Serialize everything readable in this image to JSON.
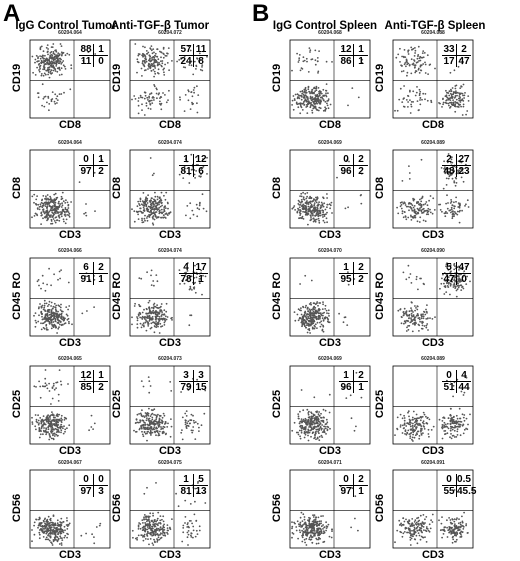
{
  "panels": [
    {
      "letter": "A",
      "columns": [
        {
          "title": "IgG Control Tumor",
          "plots": [
            {
              "id": "60204.064",
              "ylabel": "CD19",
              "xlabel": "CD8",
              "q": [
                "88",
                "1",
                "11",
                "0"
              ]
            },
            {
              "id": "60204.064",
              "ylabel": "CD8",
              "xlabel": "CD3",
              "q": [
                "0",
                "1",
                "97",
                "2"
              ]
            },
            {
              "id": "60204.066",
              "ylabel": "CD45 RO",
              "xlabel": "CD3",
              "q": [
                "6",
                "2",
                "91",
                "1"
              ]
            },
            {
              "id": "60204.065",
              "ylabel": "CD25",
              "xlabel": "CD3",
              "q": [
                "12",
                "1",
                "85",
                "2"
              ]
            },
            {
              "id": "60204.067",
              "ylabel": "CD56",
              "xlabel": "CD3",
              "q": [
                "0",
                "0",
                "97",
                "3"
              ]
            }
          ]
        },
        {
          "title": "Anti-TGF-β Tumor",
          "plots": [
            {
              "id": "60204.072",
              "ylabel": "CD19",
              "xlabel": "CD8",
              "q": [
                "57",
                "11",
                "24",
                "8"
              ]
            },
            {
              "id": "60204.074",
              "ylabel": "CD8",
              "xlabel": "CD3",
              "q": [
                "1",
                "12",
                "81",
                "6"
              ]
            },
            {
              "id": "60204.074",
              "ylabel": "CD45 RO",
              "xlabel": "CD3",
              "q": [
                "4",
                "17",
                "78",
                "1"
              ]
            },
            {
              "id": "60204.073",
              "ylabel": "CD25",
              "xlabel": "CD3",
              "q": [
                "3",
                "3",
                "79",
                "15"
              ]
            },
            {
              "id": "60204.075",
              "ylabel": "CD56",
              "xlabel": "CD3",
              "q": [
                "1",
                "5",
                "81",
                "13"
              ]
            }
          ]
        }
      ]
    },
    {
      "letter": "B",
      "columns": [
        {
          "title": "IgG Control Spleen",
          "plots": [
            {
              "id": "60204.068",
              "ylabel": "CD19",
              "xlabel": "CD8",
              "q": [
                "12",
                "1",
                "86",
                "1"
              ]
            },
            {
              "id": "60204.069",
              "ylabel": "CD8",
              "xlabel": "CD3",
              "q": [
                "0",
                "2",
                "96",
                "2"
              ]
            },
            {
              "id": "60204.070",
              "ylabel": "CD45 RO",
              "xlabel": "CD3",
              "q": [
                "1",
                "2",
                "95",
                "2"
              ]
            },
            {
              "id": "60204.069",
              "ylabel": "CD25",
              "xlabel": "CD3",
              "q": [
                "1",
                "2",
                "96",
                "1"
              ]
            },
            {
              "id": "60204.071",
              "ylabel": "CD56",
              "xlabel": "CD3",
              "q": [
                "0",
                "2",
                "97",
                "1"
              ]
            }
          ]
        },
        {
          "title": "Anti-TGF-β Spleen",
          "plots": [
            {
              "id": "60204.088",
              "ylabel": "CD19",
              "xlabel": "CD8",
              "q": [
                "33",
                "2",
                "17",
                "47"
              ]
            },
            {
              "id": "60204.089",
              "ylabel": "CD8",
              "xlabel": "CD3",
              "q": [
                "2",
                "27",
                "48",
                "23"
              ]
            },
            {
              "id": "60204.090",
              "ylabel": "CD45 RO",
              "xlabel": "CD3",
              "q": [
                "5",
                "47",
                "47",
                "0"
              ]
            },
            {
              "id": "60204.089",
              "ylabel": "CD25",
              "xlabel": "CD3",
              "q": [
                "0",
                "4",
                "51",
                "44"
              ]
            },
            {
              "id": "60204.091",
              "ylabel": "CD56",
              "xlabel": "CD3",
              "q": [
                "0",
                "0.5",
                "55",
                "45.5"
              ]
            }
          ]
        }
      ]
    }
  ],
  "colors": {
    "dots": "#555555",
    "axes": "#000000",
    "background": "#ffffff"
  }
}
